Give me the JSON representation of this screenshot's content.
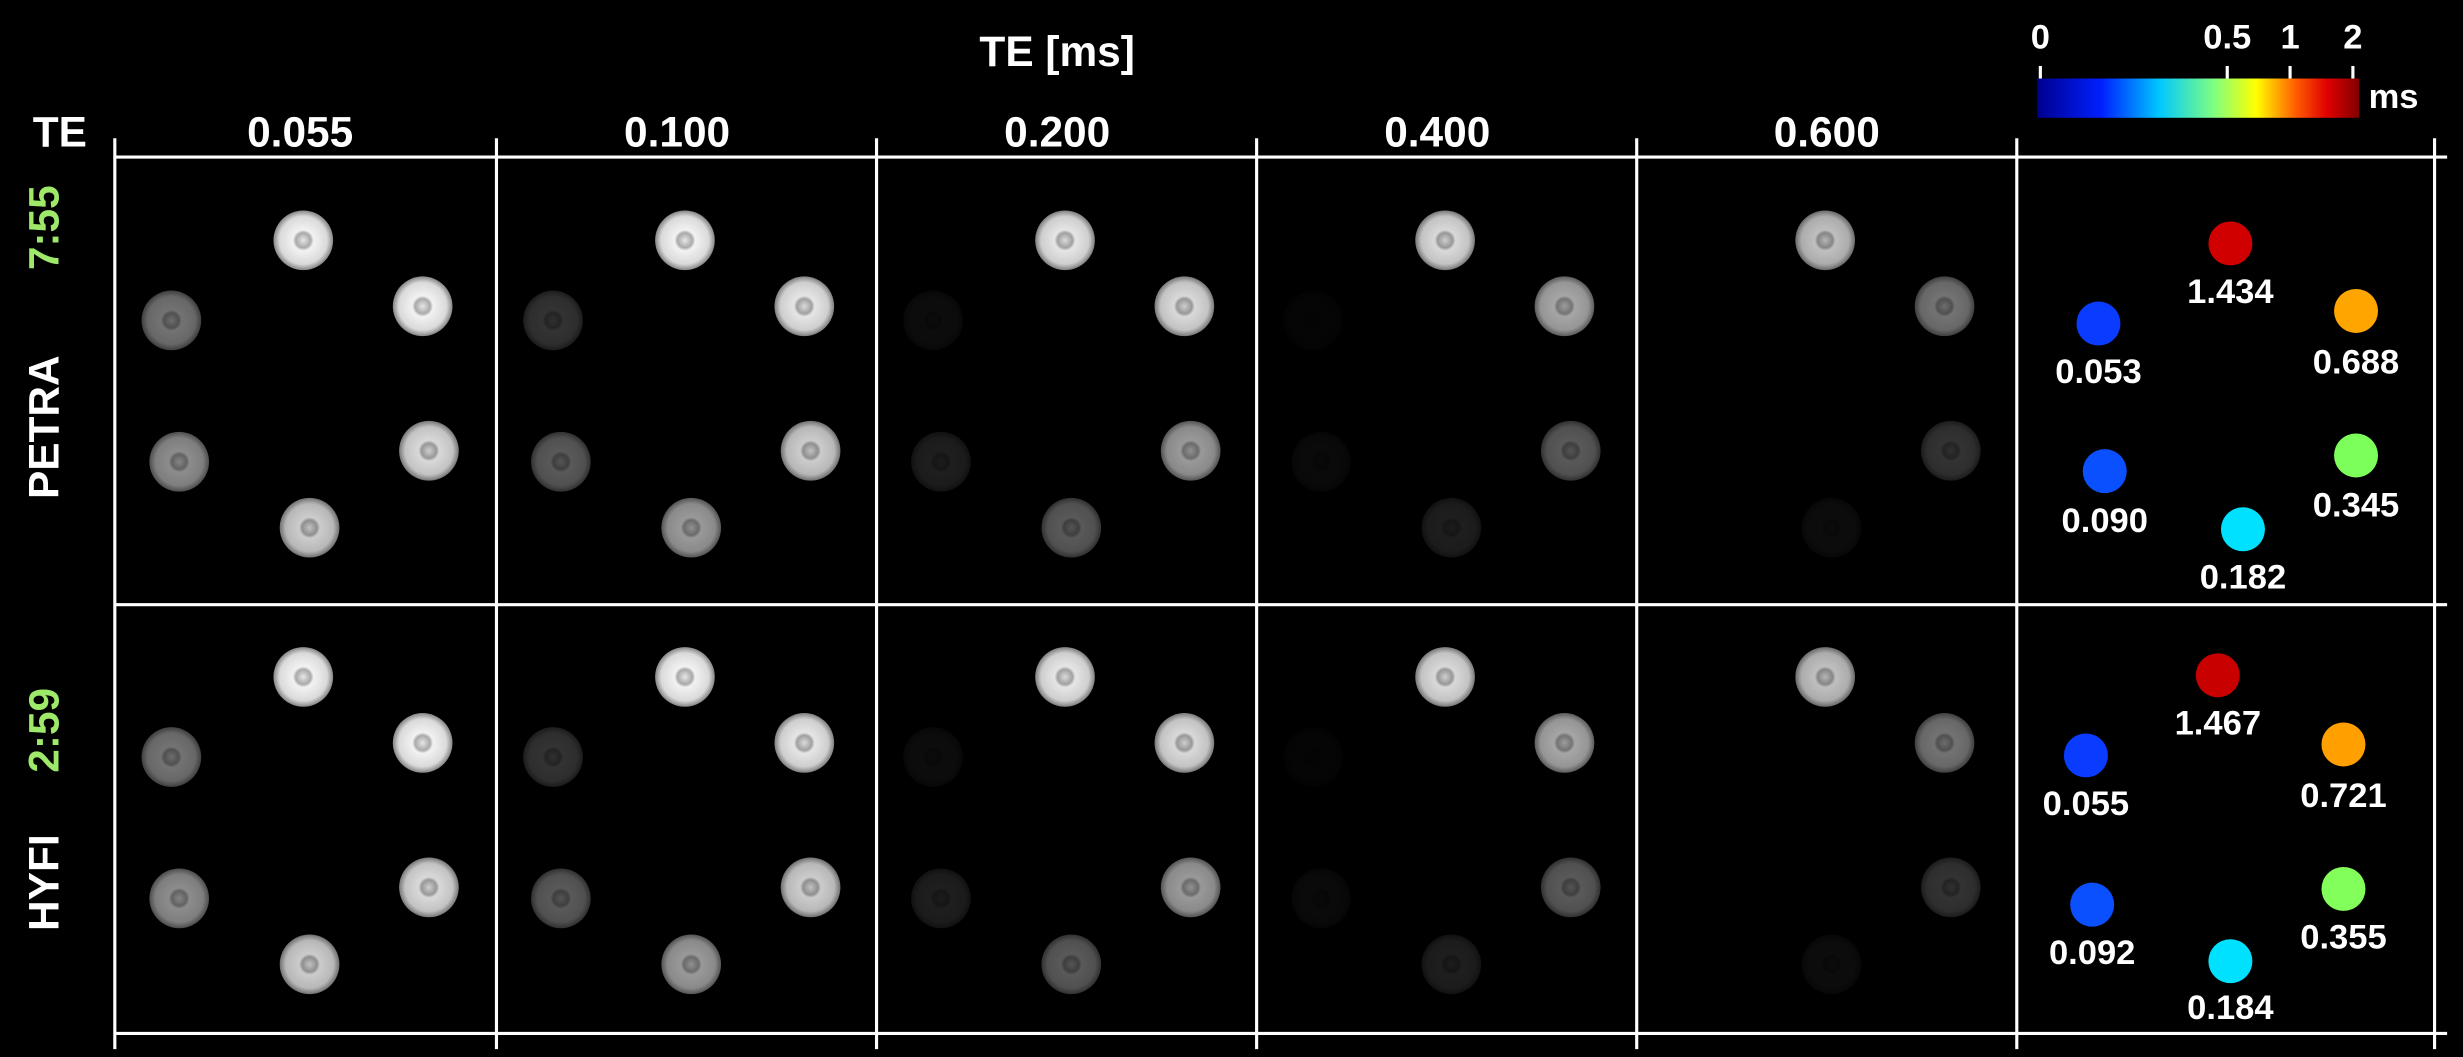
{
  "header": {
    "title": "TE [ms]",
    "te_label": "TE"
  },
  "columns": [
    "0.055",
    "0.100",
    "0.200",
    "0.400",
    "0.600"
  ],
  "rows": [
    {
      "method": "PETRA",
      "time": "7:55",
      "map": [
        {
          "value": "1.434",
          "color": "#d10000"
        },
        {
          "value": "0.688",
          "color": "#ffa500"
        },
        {
          "value": "0.053",
          "color": "#0a3cff"
        },
        {
          "value": "0.345",
          "color": "#7cff5a"
        },
        {
          "value": "0.090",
          "color": "#0a50ff"
        },
        {
          "value": "0.182",
          "color": "#00e1ff"
        }
      ]
    },
    {
      "method": "HYFI",
      "time": "2:59",
      "map": [
        {
          "value": "1.467",
          "color": "#c80000"
        },
        {
          "value": "0.721",
          "color": "#ffa000"
        },
        {
          "value": "0.055",
          "color": "#0a3cff"
        },
        {
          "value": "0.355",
          "color": "#82ff5a"
        },
        {
          "value": "0.092",
          "color": "#0a50ff"
        },
        {
          "value": "0.184",
          "color": "#00e1ff"
        }
      ]
    }
  ],
  "colorbar": {
    "ticks": [
      "0",
      "0.5",
      "1",
      "2"
    ],
    "unit": "ms"
  }
}
